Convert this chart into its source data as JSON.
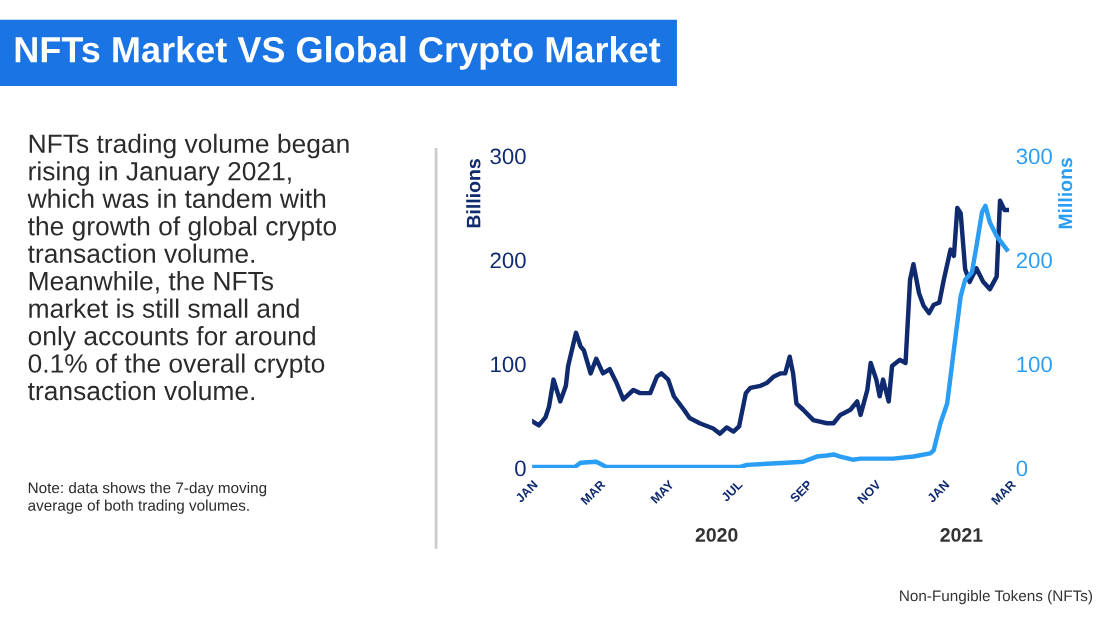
{
  "chart_data": {
    "type": "line",
    "title": "NFTs Market VS Global Crypto Market",
    "ylabel": "Billions",
    "y2label": "Millions",
    "annotations": [
      "NFTs trading volume began\nrising in January 2021,\nwhich was in tandem with\nthe growth of global crypto\ntransaction volume.\nMeanwhile, the NFTs\nmarket is still small and\nonly accounts for around\n0.1% of the overall crypto\ntransaction volume.",
      "Note: data shows the 7-day moving\naverage of both trading volumes.",
      "2020",
      "2021",
      "Non-Fungible Tokens (NFTs)"
    ],
    "xlim": [
      "2020-01-01",
      "2021-03-01"
    ],
    "xticks": [
      {
        "value": "2020-01-01",
        "label": "JAN"
      },
      {
        "value": "2020-03-01",
        "label": "MAR"
      },
      {
        "value": "2020-05-01",
        "label": "MAY"
      },
      {
        "value": "2020-07-01",
        "label": "JUL"
      },
      {
        "value": "2020-09-01",
        "label": "SEP"
      },
      {
        "value": "2020-11-01",
        "label": "NOV"
      },
      {
        "value": "2021-01-01",
        "label": "JAN"
      },
      {
        "value": "2021-03-01",
        "label": "MAR"
      }
    ],
    "ylim": [
      0,
      300
    ],
    "yticks": [
      0,
      100,
      200,
      300
    ],
    "y2lim": [
      0,
      300
    ],
    "y2ticks": [
      0,
      100,
      200,
      300
    ],
    "grid": false,
    "legend": false,
    "marker": "none",
    "line_style": "solid",
    "series": [
      {
        "color": "#0f2a6e",
        "x": [
          "2020-01-01",
          "2020-01-07",
          "2020-01-13",
          "2020-01-16",
          "2020-01-20",
          "2020-01-26",
          "2020-01-31",
          "2020-02-02",
          "2020-02-09",
          "2020-02-13",
          "2020-02-16",
          "2020-02-22",
          "2020-02-27",
          "2020-03-04",
          "2020-03-10",
          "2020-03-16",
          "2020-03-22",
          "2020-03-31",
          "2020-04-06",
          "2020-04-15",
          "2020-04-21",
          "2020-04-25",
          "2020-05-01",
          "2020-05-06",
          "2020-05-15",
          "2020-05-20",
          "2020-05-29",
          "2020-06-10",
          "2020-06-16",
          "2020-06-22",
          "2020-06-28",
          "2020-07-03",
          "2020-07-09",
          "2020-07-13",
          "2020-07-22",
          "2020-07-28",
          "2020-08-03",
          "2020-08-09",
          "2020-08-13",
          "2020-08-17",
          "2020-08-20",
          "2020-08-23",
          "2020-08-29",
          "2020-09-07",
          "2020-09-19",
          "2020-09-25",
          "2020-10-01",
          "2020-10-10",
          "2020-10-16",
          "2020-10-19",
          "2020-10-25",
          "2020-10-28",
          "2020-11-02",
          "2020-11-05",
          "2020-11-08",
          "2020-11-13",
          "2020-11-16",
          "2020-11-23",
          "2020-11-28",
          "2020-12-02",
          "2020-12-05",
          "2020-12-10",
          "2020-12-14",
          "2020-12-19",
          "2020-12-23",
          "2020-12-28",
          "2021-01-01",
          "2021-01-07",
          "2021-01-10",
          "2021-01-13",
          "2021-01-16",
          "2021-01-20",
          "2021-01-24",
          "2021-01-30",
          "2021-02-05",
          "2021-02-11",
          "2021-02-17",
          "2021-02-20",
          "2021-02-24",
          "2021-02-26"
        ],
        "values": [
          45,
          41,
          49,
          59,
          85,
          64,
          79,
          98,
          130,
          117,
          113,
          91,
          105,
          91,
          95,
          82,
          66,
          75,
          72,
          72,
          88,
          91,
          85,
          69,
          56,
          48,
          43,
          38,
          33,
          39,
          35,
          40,
          72,
          77,
          79,
          82,
          88,
          91,
          91,
          107,
          91,
          62,
          56,
          46,
          43,
          43,
          51,
          56,
          64,
          51,
          75,
          101,
          85,
          69,
          85,
          64,
          98,
          104,
          101,
          181,
          196,
          168,
          156,
          149,
          157,
          159,
          181,
          210,
          204,
          250,
          245,
          191,
          179,
          192,
          179,
          172,
          184,
          257,
          248,
          248
        ]
      },
      {
        "color": "#2a9df4",
        "axis": "y2",
        "x": [
          "2020-01-01",
          "2020-02-08",
          "2020-02-13",
          "2020-02-27",
          "2020-03-07",
          "2020-07-04",
          "2020-07-10",
          "2020-08-14",
          "2020-08-29",
          "2020-09-10",
          "2020-09-19",
          "2020-09-25",
          "2020-10-01",
          "2020-10-12",
          "2020-10-19",
          "2020-11-17",
          "2020-12-05",
          "2020-12-20",
          "2020-12-23",
          "2020-12-29",
          "2021-01-04",
          "2021-01-10",
          "2021-01-16",
          "2021-01-20",
          "2021-01-26",
          "2021-01-30",
          "2021-02-04",
          "2021-02-07",
          "2021-02-11",
          "2021-02-17",
          "2021-02-26"
        ],
        "values": [
          1,
          1,
          5,
          6,
          1,
          1,
          3,
          5,
          6,
          11,
          12,
          13,
          11,
          8,
          9,
          9,
          11,
          14,
          17,
          43,
          62,
          114,
          165,
          181,
          188,
          213,
          246,
          252,
          236,
          223,
          210
        ]
      }
    ]
  }
}
